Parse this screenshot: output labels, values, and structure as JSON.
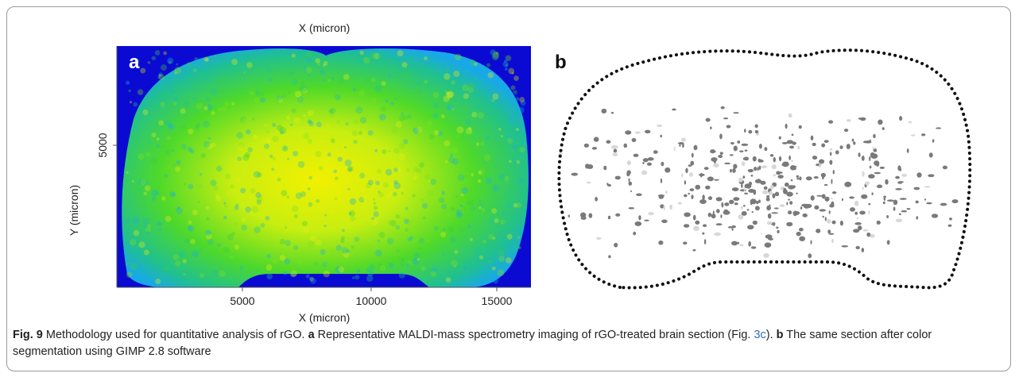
{
  "figure": {
    "panel_a": {
      "label": "a",
      "top_axis_label": "X (micron)",
      "bottom_axis_label": "X (micron)",
      "y_axis_label": "Y (micron)",
      "x_tick_labels": [
        "5000",
        "10000",
        "15000"
      ],
      "y_tick_labels": [
        "5000"
      ]
    },
    "panel_b": {
      "label": "b"
    }
  },
  "caption": {
    "segments": [
      {
        "text": "Fig. 9",
        "style": "bold"
      },
      {
        "text": "  Methodology used for quantitative analysis of rGO. ",
        "style": "normal"
      },
      {
        "text": "a",
        "style": "bold"
      },
      {
        "text": " Representative MALDI-mass spectrometry imaging of rGO-treated brain section (Fig. ",
        "style": "normal"
      },
      {
        "text": "3c",
        "style": "link"
      },
      {
        "text": "). ",
        "style": "normal"
      },
      {
        "text": "b",
        "style": "bold"
      },
      {
        "text": " The same section after color segmentation using GIMP 2.8 software",
        "style": "normal"
      }
    ]
  }
}
